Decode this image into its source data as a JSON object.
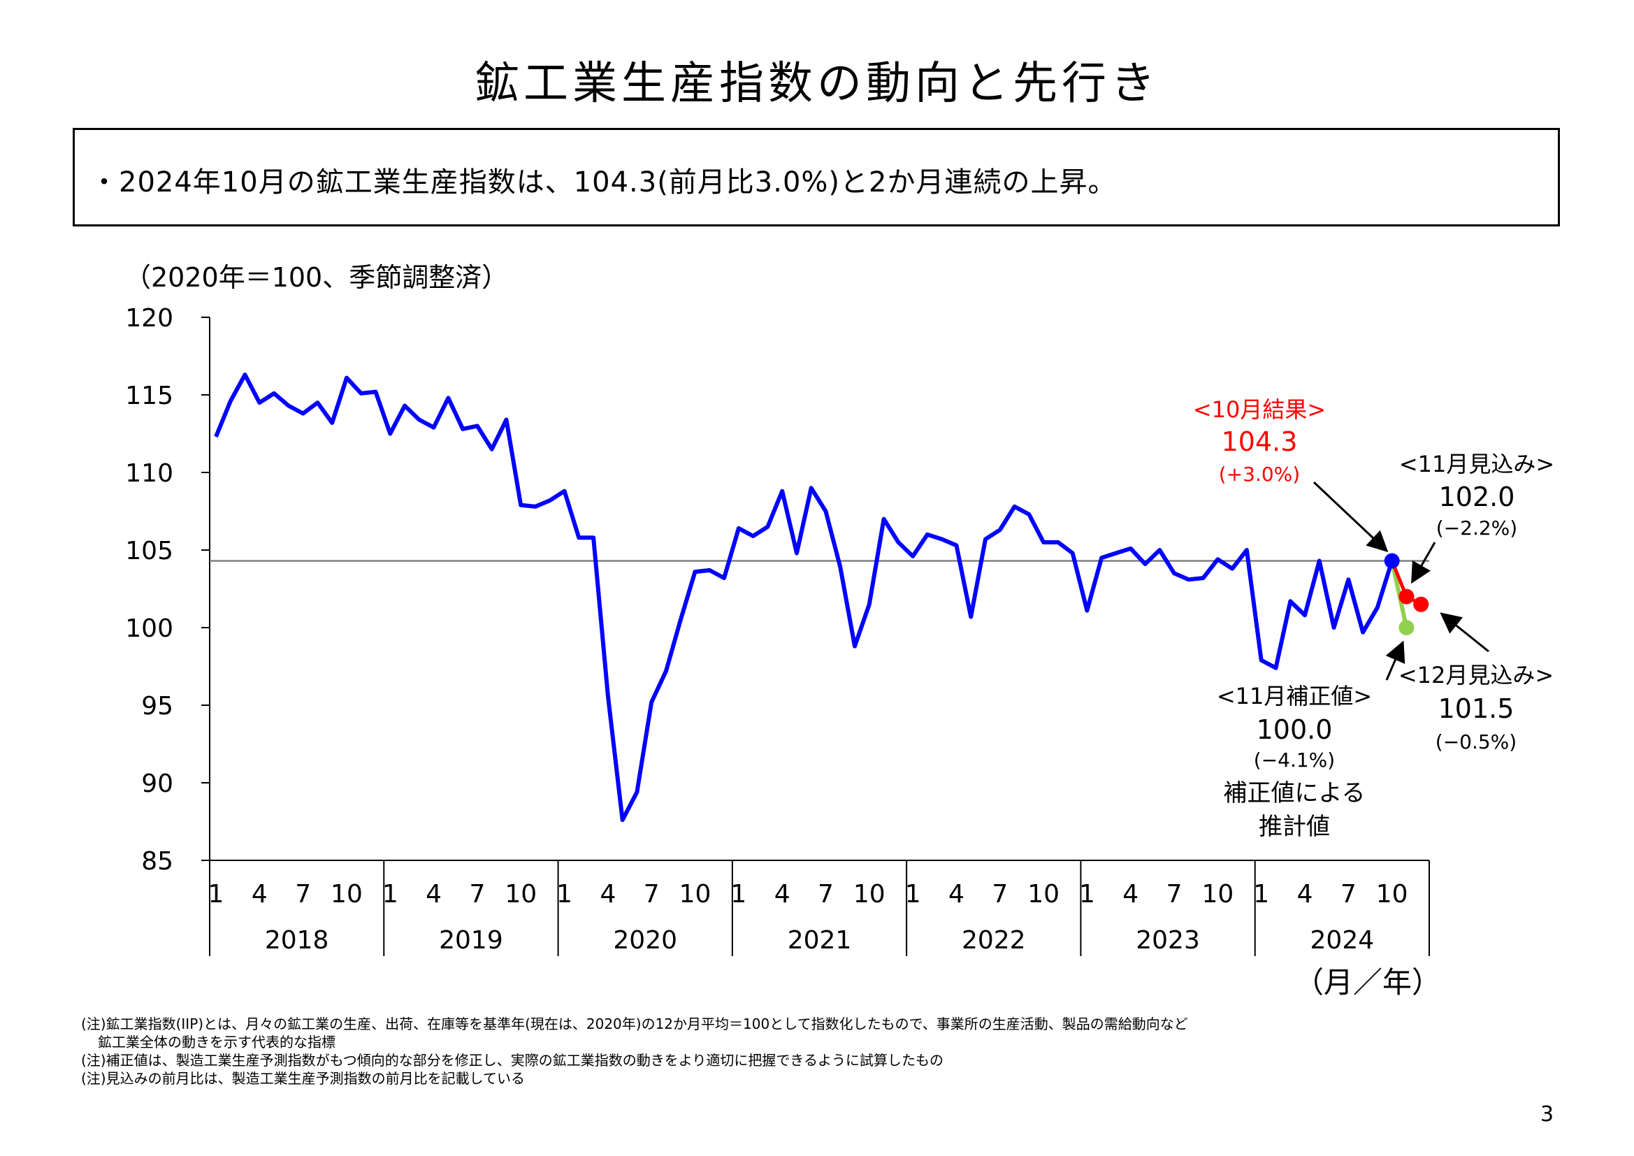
{
  "title": "鉱工業生産指数の動向と先行き",
  "summary": "・2024年10月の鉱工業生産指数は、104.3(前月比3.0%)と2か月連続の上昇。",
  "unit_label": "（2020年＝100、季節調整済）",
  "x_unit_label": "（月／年）",
  "notes": [
    "(注)鉱工業指数(IIP)とは、月々の鉱工業の生産、出荷、在庫等を基準年(現在は、2020年)の12か月平均＝100として指数化したもので、事業所の生産活動、製品の需給動向など",
    "鉱工業全体の動きを示す代表的な指標",
    "(注)補正値は、製造工業生産予測指数がもつ傾向的な部分を修正し、実際の鉱工業指数の動きをより適切に把握できるように試算したもの",
    "(注)見込みの前月比は、製造工業生産予測指数の前月比を記載している"
  ],
  "page_number": "3",
  "colors": {
    "series": "#0000ff",
    "forecast": "#ff0000",
    "corrected": "#92d050",
    "reference_line": "#808080",
    "annotation_red": "#ff0000"
  },
  "annotations": {
    "oct_result": {
      "label": "<10月結果>",
      "value": "104.3",
      "change": "(+3.0%)"
    },
    "nov_forecast": {
      "label": "<11月見込み>",
      "value": "102.0",
      "change": "(−2.2%)"
    },
    "dec_forecast": {
      "label": "<12月見込み>",
      "value": "101.5",
      "change": "(−0.5%)"
    },
    "nov_corrected": {
      "label": "<11月補正値>",
      "value": "100.0",
      "change": "(−4.1%)",
      "desc1": "補正値による",
      "desc2": "推計値"
    }
  },
  "chart_data": {
    "type": "line",
    "ylim": [
      85,
      120
    ],
    "yticks": [
      85,
      90,
      95,
      100,
      105,
      110,
      115,
      120
    ],
    "month_ticks": [
      "1",
      "4",
      "7",
      "10"
    ],
    "years": [
      "2018",
      "2019",
      "2020",
      "2021",
      "2022",
      "2023",
      "2024"
    ],
    "reference_value": 104.3,
    "series": [
      {
        "values": [
          112.3,
          114.6,
          116.3,
          114.5,
          115.1,
          114.3,
          113.8,
          114.5,
          113.2,
          116.1,
          115.1,
          115.2,
          112.5,
          114.3,
          113.4,
          112.9,
          114.8,
          112.8,
          113.0,
          111.5,
          113.4,
          107.9,
          107.8,
          108.2,
          108.8,
          105.8,
          105.8,
          95.6,
          87.6,
          89.4,
          95.2,
          97.2,
          100.5,
          103.6,
          103.7,
          103.2,
          106.4,
          105.9,
          106.5,
          108.8,
          104.8,
          109.0,
          107.5,
          103.9,
          98.8,
          101.5,
          107.0,
          105.5,
          104.6,
          106.0,
          105.7,
          105.3,
          100.7,
          105.7,
          106.3,
          107.8,
          107.3,
          105.5,
          105.5,
          104.8,
          101.1,
          104.5,
          104.8,
          105.1,
          104.1,
          105.0,
          103.5,
          103.1,
          103.2,
          104.4,
          103.8,
          105.0,
          97.9,
          97.4,
          101.7,
          100.8,
          104.3,
          100.0,
          103.1,
          99.7,
          101.3,
          104.3
        ]
      },
      {
        "name": "見込み",
        "points": [
          {
            "year": 2024,
            "month": 11,
            "value": 102.0
          },
          {
            "year": 2024,
            "month": 12,
            "value": 101.5
          }
        ]
      },
      {
        "name": "補正値",
        "points": [
          {
            "year": 2024,
            "month": 11,
            "value": 100.0
          }
        ]
      }
    ]
  }
}
